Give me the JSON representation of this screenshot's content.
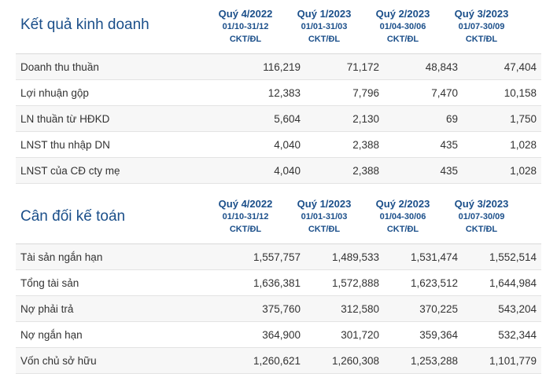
{
  "sections": [
    {
      "title": "Kết quả kinh doanh",
      "periods": [
        {
          "quarter": "Quý 4/2022",
          "dates": "01/10-31/12",
          "audit": "CKT/ĐL"
        },
        {
          "quarter": "Quý 1/2023",
          "dates": "01/01-31/03",
          "audit": "CKT/ĐL"
        },
        {
          "quarter": "Quý 2/2023",
          "dates": "01/04-30/06",
          "audit": "CKT/ĐL"
        },
        {
          "quarter": "Quý 3/2023",
          "dates": "01/07-30/09",
          "audit": "CKT/ĐL"
        }
      ],
      "rows": [
        {
          "label": "Doanh thu thuần",
          "values": [
            "116,219",
            "71,172",
            "48,843",
            "47,404"
          ]
        },
        {
          "label": "Lợi nhuận gộp",
          "values": [
            "12,383",
            "7,796",
            "7,470",
            "10,158"
          ]
        },
        {
          "label": "LN thuần từ HĐKD",
          "values": [
            "5,604",
            "2,130",
            "69",
            "1,750"
          ]
        },
        {
          "label": "LNST thu nhập DN",
          "values": [
            "4,040",
            "2,388",
            "435",
            "1,028"
          ]
        },
        {
          "label": "LNST của CĐ cty mẹ",
          "values": [
            "4,040",
            "2,388",
            "435",
            "1,028"
          ]
        }
      ]
    },
    {
      "title": "Cân đối kế toán",
      "periods": [
        {
          "quarter": "Quý 4/2022",
          "dates": "01/10-31/12",
          "audit": "CKT/ĐL"
        },
        {
          "quarter": "Quý 1/2023",
          "dates": "01/01-31/03",
          "audit": "CKT/ĐL"
        },
        {
          "quarter": "Quý 2/2023",
          "dates": "01/04-30/06",
          "audit": "CKT/ĐL"
        },
        {
          "quarter": "Quý 3/2023",
          "dates": "01/07-30/09",
          "audit": "CKT/ĐL"
        }
      ],
      "rows": [
        {
          "label": "Tài sản ngắn hạn",
          "values": [
            "1,557,757",
            "1,489,533",
            "1,531,474",
            "1,552,514"
          ]
        },
        {
          "label": "Tổng tài sản",
          "values": [
            "1,636,381",
            "1,572,888",
            "1,623,512",
            "1,644,984"
          ]
        },
        {
          "label": "Nợ phải trả",
          "values": [
            "375,760",
            "312,580",
            "370,225",
            "543,204"
          ]
        },
        {
          "label": "Nợ ngắn hạn",
          "values": [
            "364,900",
            "301,720",
            "359,364",
            "532,344"
          ]
        },
        {
          "label": "Vốn chủ sở hữu",
          "values": [
            "1,260,621",
            "1,260,308",
            "1,253,288",
            "1,101,779"
          ]
        }
      ]
    }
  ],
  "colors": {
    "title": "#1b4f8a",
    "row_shaded": "#f7f7f7",
    "row_plain": "#ffffff",
    "text": "#333333"
  }
}
